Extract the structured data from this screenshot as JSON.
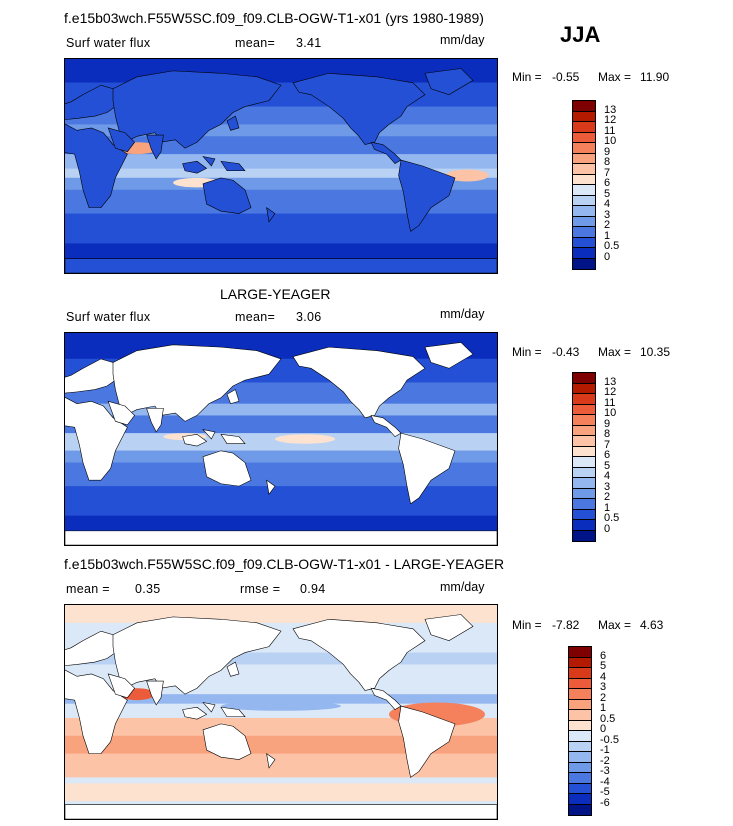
{
  "season": "JJA",
  "panels": [
    {
      "title": "f.e15b03wch.F55W5SC.f09_f09.CLB-OGW-T1-x01 (yrs 1980-1989)",
      "variable": "Surf water flux",
      "mean_label": "mean=",
      "mean": "3.41",
      "units": "mm/day",
      "min_label": "Min =",
      "min": "-0.55",
      "max_label": "Max =",
      "max": "11.90",
      "colorbar_labels": [
        "13",
        "12",
        "11",
        "10",
        "9",
        "8",
        "7",
        "6",
        "5",
        "4",
        "3",
        "2",
        "1",
        "0.5",
        "0"
      ],
      "colors": [
        "#7f0000",
        "#b31a00",
        "#d93a1a",
        "#ec5c3a",
        "#f4805c",
        "#f8a27e",
        "#fcc3a6",
        "#fde2cf",
        "#dbe8f8",
        "#b9d2f4",
        "#94b7ef",
        "#6f9ae8",
        "#4a77e0",
        "#2450d6",
        "#0a2dbd",
        "#001488"
      ]
    },
    {
      "title": "LARGE-YEAGER",
      "variable": "Surf water flux",
      "mean_label": "mean=",
      "mean": "3.06",
      "units": "mm/day",
      "min_label": "Min =",
      "min": "-0.43",
      "max_label": "Max =",
      "max": "10.35",
      "colorbar_labels": [
        "13",
        "12",
        "11",
        "10",
        "9",
        "8",
        "7",
        "6",
        "5",
        "4",
        "3",
        "2",
        "1",
        "0.5",
        "0"
      ],
      "colors": [
        "#7f0000",
        "#b31a00",
        "#d93a1a",
        "#ec5c3a",
        "#f4805c",
        "#f8a27e",
        "#fcc3a6",
        "#fde2cf",
        "#dbe8f8",
        "#b9d2f4",
        "#94b7ef",
        "#6f9ae8",
        "#4a77e0",
        "#2450d6",
        "#0a2dbd",
        "#001488"
      ]
    },
    {
      "title": "f.e15b03wch.F55W5SC.f09_f09.CLB-OGW-T1-x01 - LARGE-YEAGER",
      "mean_label": "mean =",
      "mean": "0.35",
      "rmse_label": "rmse =",
      "rmse": "0.94",
      "units": "mm/day",
      "min_label": "Min =",
      "min": "-7.82",
      "max_label": "Max =",
      "max": "4.63",
      "colorbar_labels": [
        "6",
        "5",
        "4",
        "3",
        "2",
        "1",
        "0.5",
        "0",
        "-0.5",
        "-1",
        "-2",
        "-3",
        "-4",
        "-5",
        "-6"
      ],
      "colors": [
        "#7f0000",
        "#b31a00",
        "#d93a1a",
        "#ec5c3a",
        "#f4805c",
        "#f8a27e",
        "#fcc3a6",
        "#fde2cf",
        "#dbe8f8",
        "#b9d2f4",
        "#94b7ef",
        "#6f9ae8",
        "#4a77e0",
        "#2450d6",
        "#0a2dbd",
        "#001488"
      ]
    }
  ]
}
